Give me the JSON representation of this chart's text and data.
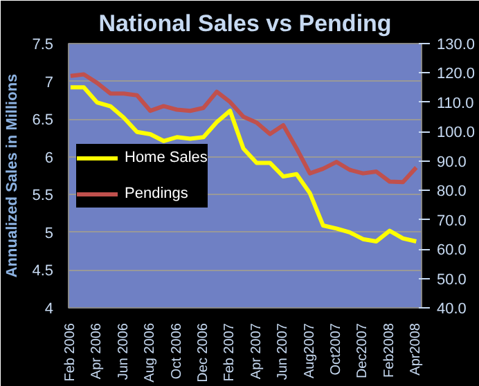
{
  "chart_data": {
    "type": "line",
    "title": "National Sales vs Pending",
    "ylabel": "Annualized Sales in Millions",
    "categories": [
      "Feb 2006",
      null,
      "Apr 2006",
      null,
      "Jun 2006",
      null,
      "Aug 2006",
      null,
      "Oct 2006",
      null,
      "Dec 2006",
      null,
      "Feb 2007",
      null,
      "Apr 2007",
      null,
      "Jun 2007",
      null,
      "Aug2007",
      null,
      "Oct2007",
      null,
      "Dec2007",
      null,
      "Feb2008",
      null,
      "Apr2008"
    ],
    "series": [
      {
        "name": "Home Sales",
        "color": "#ffff00",
        "values": [
          6.92,
          6.92,
          6.72,
          6.67,
          6.52,
          6.33,
          6.3,
          6.21,
          6.26,
          6.24,
          6.26,
          6.46,
          6.61,
          6.11,
          5.92,
          5.92,
          5.74,
          5.77,
          5.52,
          5.09,
          5.05,
          5.0,
          4.91,
          4.88,
          5.02,
          4.92,
          4.88
        ]
      },
      {
        "name": "Pendings",
        "color": "#c0504d",
        "axis": "y2",
        "values": [
          119,
          119.5,
          116.6,
          113,
          113,
          112.4,
          107.1,
          108.7,
          107.5,
          107.1,
          108.1,
          113.6,
          110.1,
          105.1,
          103.1,
          99.2,
          102.2,
          94.3,
          85.8,
          87.4,
          89.7,
          87,
          85.8,
          86.4,
          83,
          82.8,
          87.8
        ]
      }
    ],
    "ylim": [
      4,
      7.5
    ],
    "yticks": [
      4,
      4.5,
      5,
      5.5,
      6,
      6.5,
      7,
      7.5
    ],
    "y2lim": [
      40,
      130
    ],
    "y2ticks": [
      {
        "value": 40,
        "label": "40.0"
      },
      {
        "value": 50,
        "label": "50.0"
      },
      {
        "value": 60,
        "label": "60.0"
      },
      {
        "value": 70,
        "label": "70.0"
      },
      {
        "value": 80,
        "label": "80.0"
      },
      {
        "value": 90,
        "label": "90.0"
      },
      {
        "value": 100,
        "label": "100.0"
      },
      {
        "value": 110,
        "label": "110.0"
      },
      {
        "value": 120,
        "label": "120.0"
      },
      {
        "value": 130,
        "label": "130.0"
      }
    ],
    "grid": "y",
    "legend": "left",
    "marker": "none",
    "line_style": "solid"
  }
}
